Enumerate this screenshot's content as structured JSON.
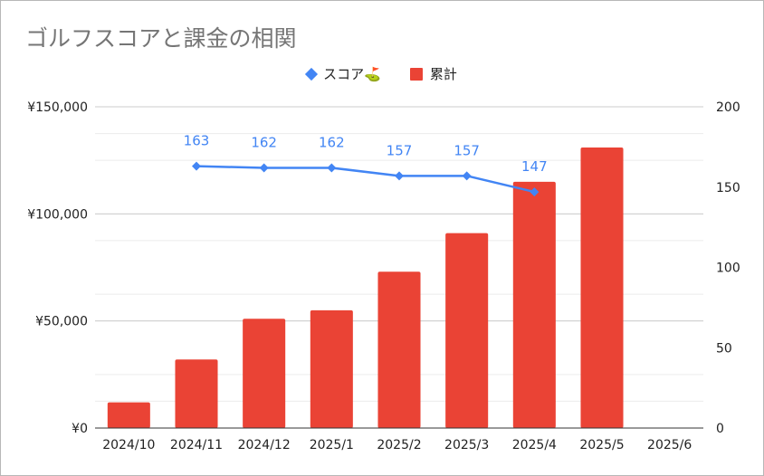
{
  "chart_data": {
    "type": "bar",
    "title": "ゴルフスコアと課金の相関",
    "categories": [
      "2024/10",
      "2024/11",
      "2024/12",
      "2025/1",
      "2025/2",
      "2025/3",
      "2025/4",
      "2025/5",
      "2025/6"
    ],
    "series": [
      {
        "name": "累計",
        "type": "bar",
        "axis": "left",
        "color": "#ea4335",
        "values": [
          12000,
          32000,
          51000,
          55000,
          73000,
          91000,
          115000,
          131000,
          null
        ]
      },
      {
        "name": "スコア⛳",
        "type": "line",
        "axis": "right",
        "color": "#4285f4",
        "marker": "diamond",
        "values": [
          null,
          163,
          162,
          162,
          157,
          157,
          147,
          null,
          null
        ],
        "data_labels": [
          null,
          "163",
          "162",
          "162",
          "157",
          "157",
          "147",
          null,
          null
        ]
      }
    ],
    "y_left": {
      "ylim": [
        0,
        150000
      ],
      "ticks": [
        0,
        50000,
        100000,
        150000
      ],
      "tick_labels": [
        "¥0",
        "¥50,000",
        "¥100,000",
        "¥150,000"
      ]
    },
    "y_right": {
      "ylim": [
        0,
        200
      ],
      "ticks": [
        0,
        50,
        100,
        150,
        200
      ],
      "tick_labels": [
        "0",
        "50",
        "100",
        "150",
        "200"
      ]
    },
    "xlabel": "",
    "ylabel": "",
    "grid": true,
    "legend_position": "top"
  }
}
